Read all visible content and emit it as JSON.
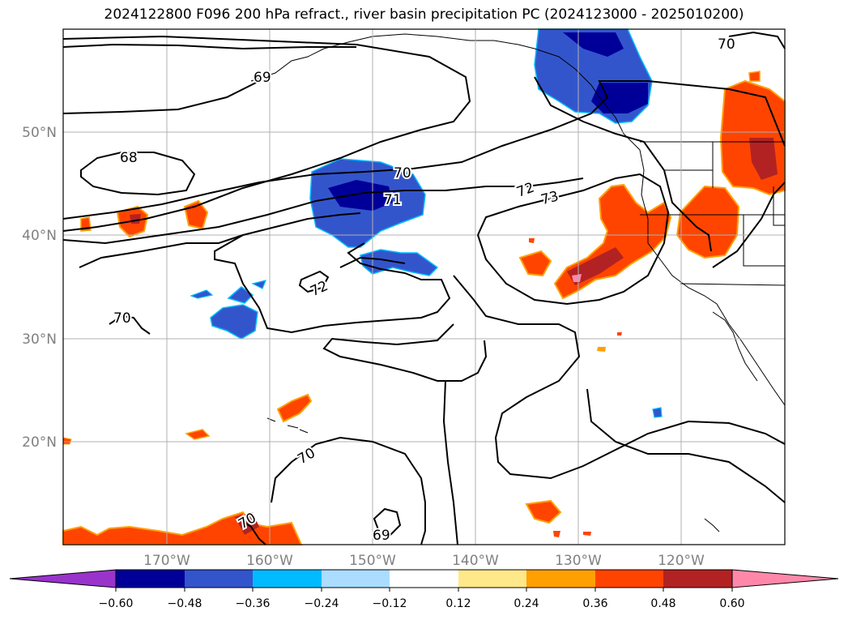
{
  "title": "2024122800 F096 200 hPa refract., river basin precipitation PC (2024123000 - 2025010200)",
  "map": {
    "lon_labels": [
      "170°W",
      "160°W",
      "150°W",
      "140°W",
      "130°W",
      "120°W"
    ],
    "lat_labels": [
      "50°N",
      "40°N",
      "30°N",
      "20°N"
    ],
    "contour_labels": [
      "70",
      "69",
      "68",
      "70",
      "71",
      "72",
      "73",
      "72",
      "70",
      "70",
      "70",
      "69"
    ]
  },
  "colorbar": {
    "ticks": [
      "−0.60",
      "−0.48",
      "−0.36",
      "−0.24",
      "−0.12",
      "0.12",
      "0.24",
      "0.36",
      "0.48",
      "0.60"
    ],
    "colors": [
      "#9933cc",
      "#000099",
      "#3355cc",
      "#00bbff",
      "#aaddff",
      "#ffffff",
      "#ffe88a",
      "#ffa000",
      "#ff4400",
      "#b22222",
      "#ff88aa"
    ]
  }
}
